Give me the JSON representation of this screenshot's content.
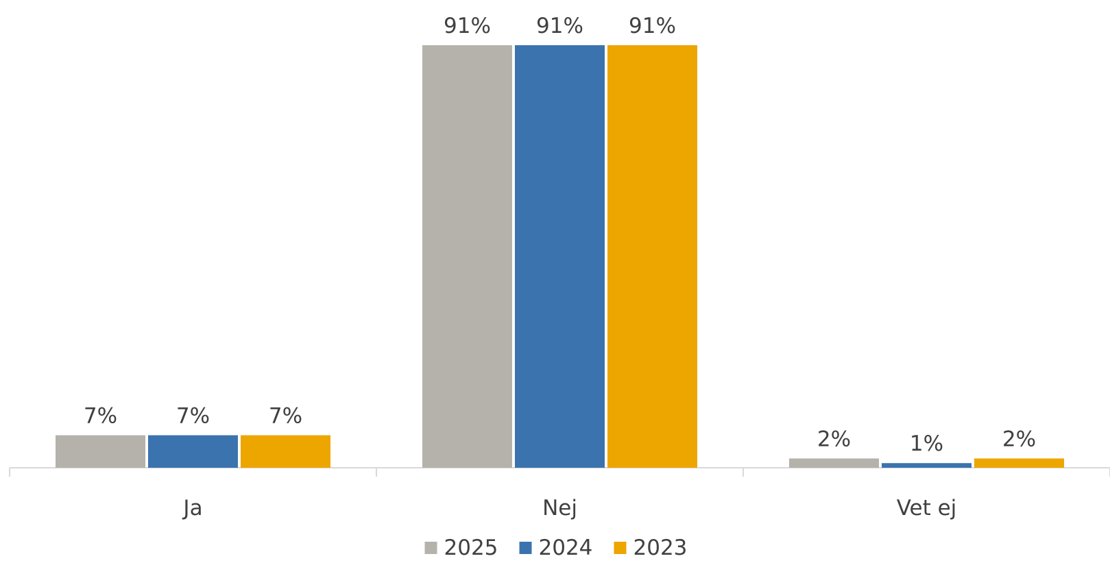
{
  "chart_data": {
    "type": "bar",
    "categories": [
      "Ja",
      "Nej",
      "Vet ej"
    ],
    "series": [
      {
        "name": "2025",
        "values": [
          7,
          91,
          2
        ],
        "labels": [
          "7%",
          "91%",
          "2%"
        ],
        "color": "#b5b2ab"
      },
      {
        "name": "2024",
        "values": [
          7,
          91,
          1
        ],
        "labels": [
          "7%",
          "91%",
          "1%"
        ],
        "color": "#3b73ae"
      },
      {
        "name": "2023",
        "values": [
          7,
          91,
          2
        ],
        "labels": [
          "7%",
          "91%",
          "2%"
        ],
        "color": "#eda500"
      }
    ],
    "ylim": [
      0,
      100
    ],
    "grid": false,
    "legend_position": "bottom"
  }
}
